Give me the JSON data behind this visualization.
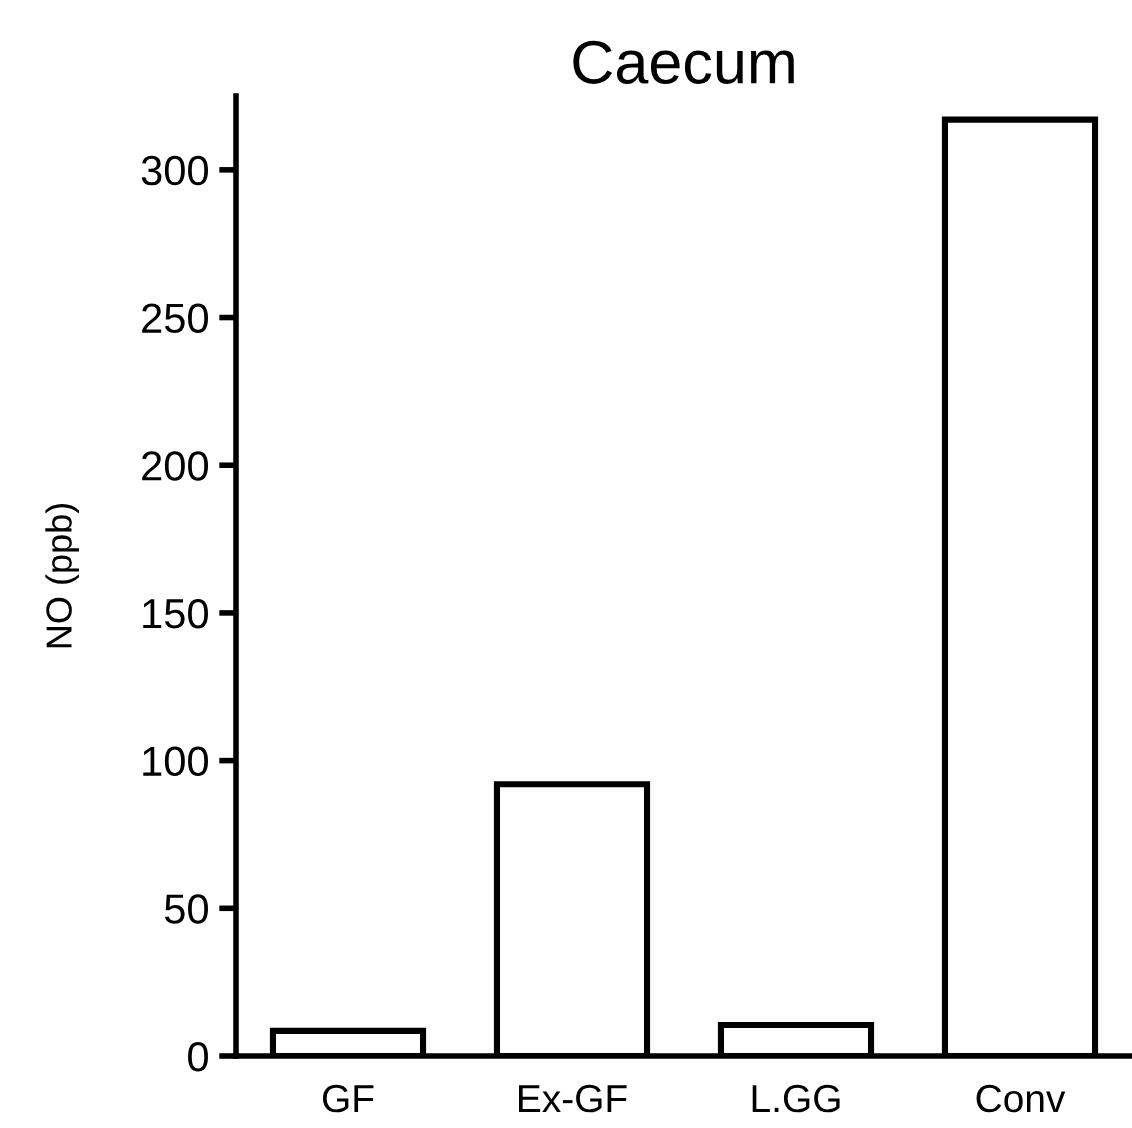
{
  "chart_data": {
    "type": "bar",
    "title": "Caecum",
    "ylabel": "NO (ppb)",
    "categories": [
      "GF",
      "Ex-GF",
      "L.GG",
      "Conv"
    ],
    "values": [
      8.5,
      92,
      10.5,
      317
    ],
    "color": "#ffffff",
    "ylim": [
      0,
      325
    ],
    "yticks": [
      0,
      50,
      100,
      150,
      200,
      250,
      300
    ],
    "grid": false,
    "legend": false
  }
}
